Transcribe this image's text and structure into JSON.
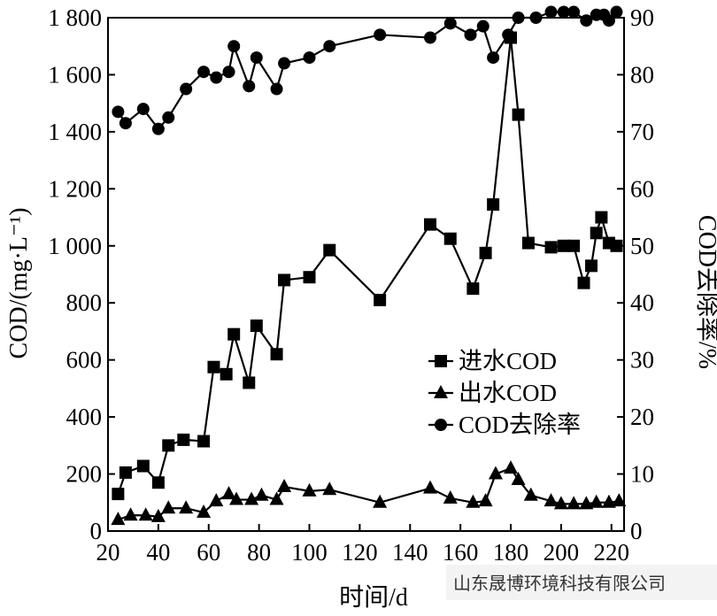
{
  "chart_data": {
    "type": "line",
    "xlabel": "时间/d",
    "ylabel_left": "COD/(mg·L⁻¹)",
    "ylabel_right": "COD去除率/%",
    "xlim": [
      20,
      225
    ],
    "ylim_left": [
      0,
      1800
    ],
    "ylim_right": [
      0,
      90
    ],
    "x_ticks": [
      20,
      40,
      60,
      80,
      100,
      120,
      140,
      160,
      180,
      200,
      220
    ],
    "y_left_ticks": [
      0,
      200,
      400,
      600,
      800,
      1000,
      1200,
      1400,
      1600,
      1800
    ],
    "y_left_tick_labels": [
      "0",
      "200",
      "400",
      "600",
      "800",
      "1 000",
      "1 200",
      "1 400",
      "1 600",
      "1 800"
    ],
    "y_right_ticks": [
      0,
      10,
      20,
      30,
      40,
      50,
      60,
      70,
      80,
      90
    ],
    "legend_position": "right-middle",
    "series": [
      {
        "name": "进水COD",
        "marker": "square",
        "axis": "left",
        "points": [
          [
            24,
            130
          ],
          [
            27,
            205
          ],
          [
            34,
            228
          ],
          [
            40,
            170
          ],
          [
            44,
            300
          ],
          [
            50,
            320
          ],
          [
            58,
            315
          ],
          [
            62,
            575
          ],
          [
            67,
            550
          ],
          [
            70,
            690
          ],
          [
            76,
            520
          ],
          [
            79,
            720
          ],
          [
            87,
            620
          ],
          [
            90,
            880
          ],
          [
            100,
            890
          ],
          [
            108,
            985
          ],
          [
            128,
            810
          ],
          [
            148,
            1075
          ],
          [
            156,
            1025
          ],
          [
            165,
            850
          ],
          [
            170,
            975
          ],
          [
            173,
            1145
          ],
          [
            180,
            1730
          ],
          [
            183,
            1460
          ],
          [
            187,
            1010
          ],
          [
            196,
            995
          ],
          [
            201,
            1000
          ],
          [
            205,
            1000
          ],
          [
            209,
            870
          ],
          [
            212,
            930
          ],
          [
            214,
            1045
          ],
          [
            216,
            1100
          ],
          [
            219,
            1010
          ],
          [
            222,
            1000
          ]
        ]
      },
      {
        "name": "出水COD",
        "marker": "triangle",
        "axis": "left",
        "points": [
          [
            24,
            40
          ],
          [
            29,
            55
          ],
          [
            35,
            55
          ],
          [
            40,
            50
          ],
          [
            44,
            80
          ],
          [
            51,
            80
          ],
          [
            58,
            65
          ],
          [
            63,
            105
          ],
          [
            68,
            130
          ],
          [
            71,
            110
          ],
          [
            77,
            110
          ],
          [
            81,
            125
          ],
          [
            87,
            110
          ],
          [
            90,
            155
          ],
          [
            100,
            140
          ],
          [
            108,
            145
          ],
          [
            128,
            100
          ],
          [
            148,
            150
          ],
          [
            156,
            115
          ],
          [
            165,
            100
          ],
          [
            170,
            105
          ],
          [
            174,
            200
          ],
          [
            180,
            220
          ],
          [
            183,
            180
          ],
          [
            188,
            125
          ],
          [
            196,
            105
          ],
          [
            200,
            95
          ],
          [
            205,
            95
          ],
          [
            210,
            95
          ],
          [
            214,
            100
          ],
          [
            219,
            100
          ],
          [
            223,
            105
          ]
        ]
      },
      {
        "name": "COD去除率",
        "marker": "circle",
        "axis": "right",
        "points": [
          [
            24,
            73.5
          ],
          [
            27,
            71.5
          ],
          [
            34,
            74
          ],
          [
            40,
            70.5
          ],
          [
            44,
            72.5
          ],
          [
            51,
            77.5
          ],
          [
            58,
            80.5
          ],
          [
            63,
            79.5
          ],
          [
            68,
            80.5
          ],
          [
            70,
            85
          ],
          [
            76,
            78
          ],
          [
            79,
            83
          ],
          [
            87,
            77.5
          ],
          [
            90,
            82
          ],
          [
            100,
            83
          ],
          [
            108,
            85
          ],
          [
            128,
            87
          ],
          [
            148,
            86.5
          ],
          [
            156,
            89
          ],
          [
            164,
            87
          ],
          [
            169,
            88.5
          ],
          [
            173,
            83
          ],
          [
            179,
            87
          ],
          [
            183,
            90
          ],
          [
            190,
            90
          ],
          [
            196,
            91
          ],
          [
            201,
            91
          ],
          [
            205,
            91
          ],
          [
            210,
            89.5
          ],
          [
            214,
            90.5
          ],
          [
            217,
            90.5
          ],
          [
            219,
            89.5
          ],
          [
            222,
            91
          ]
        ]
      }
    ]
  },
  "watermark": "山东晟博环境科技有限公司"
}
